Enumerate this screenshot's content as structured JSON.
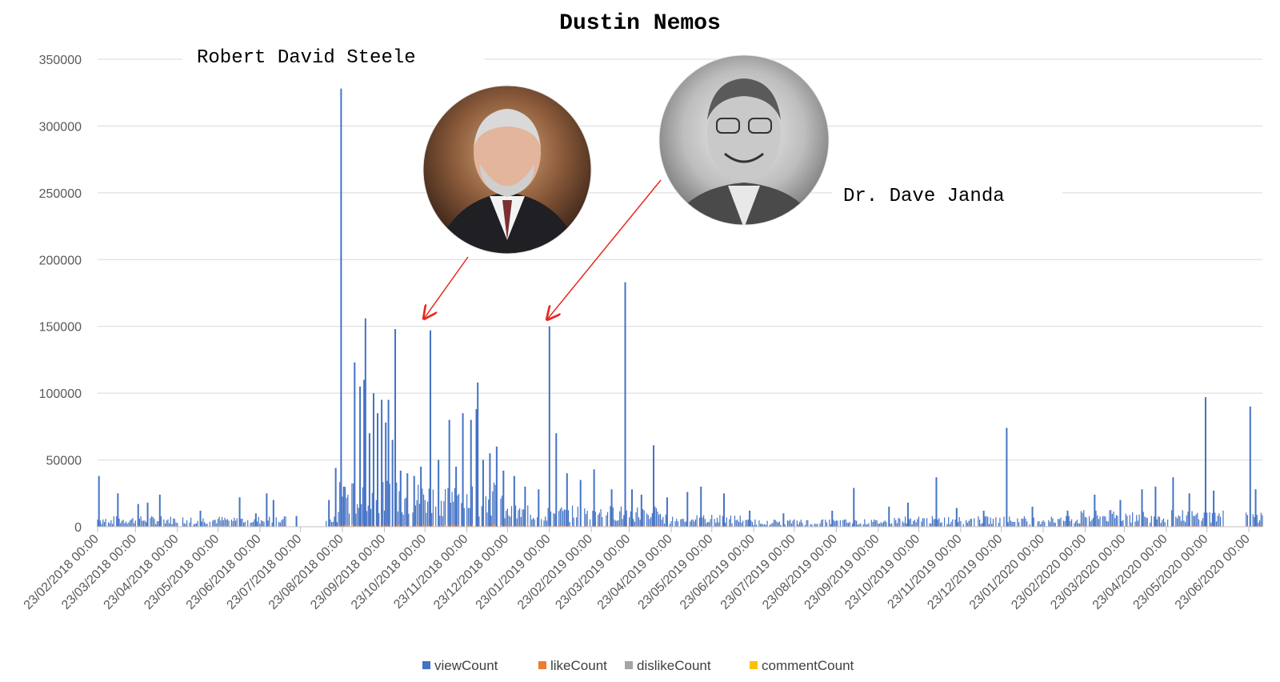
{
  "chart_data": {
    "type": "bar",
    "title": "Dustin Nemos",
    "ylim": [
      0,
      350000
    ],
    "yticks": [
      "0",
      "50000",
      "100000",
      "150000",
      "200000",
      "250000",
      "300000",
      "350000"
    ],
    "x_start_date": "2018-02-23",
    "x_end_date": "2020-07-03",
    "x_tick_labels": [
      "23/02/2018 00:00",
      "23/03/2018 00:00",
      "23/04/2018 00:00",
      "23/05/2018 00:00",
      "23/06/2018 00:00",
      "23/07/2018 00:00",
      "23/08/2018 00:00",
      "23/09/2018 00:00",
      "23/10/2018 00:00",
      "23/11/2018 00:00",
      "23/12/2018 00:00",
      "23/01/2019 00:00",
      "23/02/2019 00:00",
      "23/03/2019 00:00",
      "23/04/2019 00:00",
      "23/05/2019 00:00",
      "23/06/2019 00:00",
      "23/07/2019 00:00",
      "23/08/2019 00:00",
      "23/09/2019 00:00",
      "23/10/2019 00:00",
      "23/11/2019 00:00",
      "23/12/2019 00:00",
      "23/01/2020 00:00",
      "23/02/2020 00:00",
      "23/03/2020 00:00",
      "23/04/2020 00:00",
      "23/05/2020 00:00",
      "23/06/2020 00:00"
    ],
    "grid": true,
    "legend_placement": "bottom",
    "series": [
      {
        "name": "viewCount",
        "color": "#4472C4",
        "points": [
          [
            "2018-02-24",
            38000
          ],
          [
            "2018-03-10",
            25000
          ],
          [
            "2018-03-25",
            17000
          ],
          [
            "2018-04-01",
            18000
          ],
          [
            "2018-04-10",
            24000
          ],
          [
            "2018-05-10",
            12000
          ],
          [
            "2018-06-08",
            22000
          ],
          [
            "2018-06-20",
            10000
          ],
          [
            "2018-06-28",
            25000
          ],
          [
            "2018-07-03",
            20000
          ],
          [
            "2018-07-20",
            8000
          ],
          [
            "2018-08-13",
            20000
          ],
          [
            "2018-08-18",
            44000
          ],
          [
            "2018-08-22",
            328000
          ],
          [
            "2018-08-24",
            30000
          ],
          [
            "2018-09-01",
            123000
          ],
          [
            "2018-09-05",
            105000
          ],
          [
            "2018-09-08",
            110000
          ],
          [
            "2018-09-09",
            156000
          ],
          [
            "2018-09-12",
            70000
          ],
          [
            "2018-09-15",
            100000
          ],
          [
            "2018-09-18",
            85000
          ],
          [
            "2018-09-21",
            95000
          ],
          [
            "2018-09-24",
            78000
          ],
          [
            "2018-09-26",
            95000
          ],
          [
            "2018-09-29",
            65000
          ],
          [
            "2018-10-01",
            148000
          ],
          [
            "2018-10-05",
            42000
          ],
          [
            "2018-10-10",
            40000
          ],
          [
            "2018-10-15",
            38000
          ],
          [
            "2018-10-20",
            45000
          ],
          [
            "2018-10-27",
            147000
          ],
          [
            "2018-11-02",
            50000
          ],
          [
            "2018-11-10",
            80000
          ],
          [
            "2018-11-15",
            45000
          ],
          [
            "2018-11-20",
            85000
          ],
          [
            "2018-11-26",
            80000
          ],
          [
            "2018-11-30",
            88000
          ],
          [
            "2018-12-01",
            108000
          ],
          [
            "2018-12-05",
            50000
          ],
          [
            "2018-12-10",
            55000
          ],
          [
            "2018-12-15",
            60000
          ],
          [
            "2018-12-20",
            42000
          ],
          [
            "2018-12-28",
            38000
          ],
          [
            "2019-01-05",
            30000
          ],
          [
            "2019-01-15",
            28000
          ],
          [
            "2019-01-23",
            150000
          ],
          [
            "2019-01-28",
            70000
          ],
          [
            "2019-02-05",
            40000
          ],
          [
            "2019-02-15",
            35000
          ],
          [
            "2019-02-25",
            43000
          ],
          [
            "2019-03-10",
            28000
          ],
          [
            "2019-03-20",
            183000
          ],
          [
            "2019-03-25",
            28000
          ],
          [
            "2019-04-01",
            24000
          ],
          [
            "2019-04-10",
            61000
          ],
          [
            "2019-04-20",
            22000
          ],
          [
            "2019-05-05",
            26000
          ],
          [
            "2019-05-15",
            30000
          ],
          [
            "2019-06-01",
            25000
          ],
          [
            "2019-06-20",
            12000
          ],
          [
            "2019-07-15",
            10000
          ],
          [
            "2019-08-20",
            12000
          ],
          [
            "2019-09-05",
            29000
          ],
          [
            "2019-10-01",
            15000
          ],
          [
            "2019-10-15",
            18000
          ],
          [
            "2019-11-05",
            37000
          ],
          [
            "2019-11-20",
            14000
          ],
          [
            "2019-12-10",
            12000
          ],
          [
            "2019-12-27",
            74000
          ],
          [
            "2020-01-15",
            15000
          ],
          [
            "2020-02-10",
            12000
          ],
          [
            "2020-03-01",
            24000
          ],
          [
            "2020-03-20",
            20000
          ],
          [
            "2020-04-05",
            28000
          ],
          [
            "2020-04-15",
            30000
          ],
          [
            "2020-04-28",
            37000
          ],
          [
            "2020-05-10",
            25000
          ],
          [
            "2020-05-22",
            97000
          ],
          [
            "2020-05-28",
            27000
          ],
          [
            "2020-06-24",
            90000
          ],
          [
            "2020-06-28",
            28000
          ]
        ]
      },
      {
        "name": "likeCount",
        "color": "#ED7D31"
      },
      {
        "name": "dislikeCount",
        "color": "#A5A5A5"
      },
      {
        "name": "commentCount",
        "color": "#FFC000"
      }
    ],
    "annotations": [
      {
        "label": "Robert David Steele",
        "date": "2018-10-27",
        "value": 147000
      },
      {
        "label": "Dr. Dave Janda",
        "date": "2019-01-23",
        "value": 150000
      }
    ]
  }
}
